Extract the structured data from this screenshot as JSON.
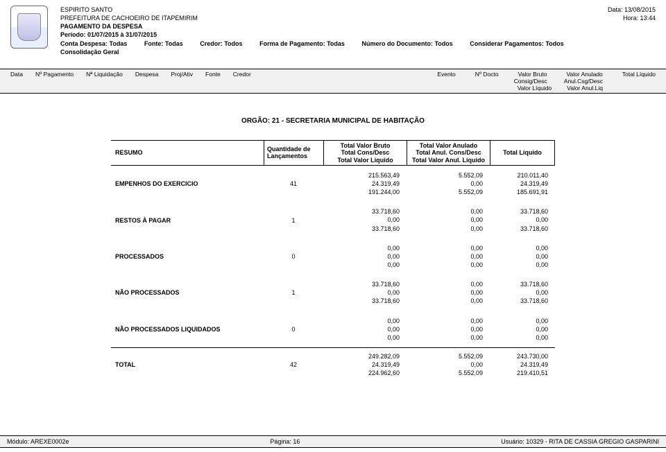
{
  "header": {
    "org_state": "ESPIRITO SANTO",
    "prefecture": "PREFEITURA DE CACHOEIRO DE ITAPEMIRIM",
    "title": "PAGAMENTO DA DESPESA",
    "period": "Período: 01/07/2015 à 31/07/2015",
    "consolidation": "Consolidação Geral",
    "date_label": "Data: 13/08/2015",
    "time_label": "Hora: 13:44",
    "filters": {
      "conta": "Conta Despesa: Todas",
      "fonte": "Fonte: Todas",
      "credor": "Credor: Todos",
      "forma": "Forma de Pagamento: Todas",
      "numdoc": "Número do Documento: Todos",
      "consid": "Considerar Pagamentos: Todos"
    }
  },
  "col_band": {
    "left": [
      "Data",
      "Nº Pagamento",
      "Nª Liquidação",
      "Despesa",
      "Proj/Ativ",
      "Fonte",
      "Credor"
    ],
    "r1": [
      "Evento",
      "Nº Docto",
      "Valor Bruto",
      "Valor Anulado",
      "Total Líquido"
    ],
    "r2": [
      "Consig/Desc",
      "Anul.Csg/Desc"
    ],
    "r3": [
      "Valor Líquido",
      "Valor Anul.Liq"
    ]
  },
  "orgao": "ORGÃO: 21 - SECRETARIA MUNICIPAL DE HABITAÇÃO",
  "summary": {
    "head": {
      "resumo": "RESUMO",
      "qtd1": "Quantidade de",
      "qtd2": "Lançamentos",
      "c1a": "Total Valor Bruto",
      "c1b": "Total Cons/Desc",
      "c1c": "Total Valor Líquido",
      "c2a": "Total Valor Anulado",
      "c2b": "Total Anul. Cons/Desc",
      "c2c": "Total Valor Anul. Líquido",
      "c3": "Total Líquido"
    },
    "rows": [
      {
        "label": "EMPENHOS DO EXERCICIO",
        "qtd": "41",
        "v1": [
          "215.563,49",
          "24.319,49",
          "191.244,00"
        ],
        "v2": [
          "5.552,09",
          "0,00",
          "5.552,09"
        ],
        "v3": [
          "210.011,40",
          "24.319,49",
          "185.691,91"
        ]
      },
      {
        "label": "RESTOS À PAGAR",
        "qtd": "1",
        "v1": [
          "33.718,60",
          "0,00",
          "33.718,60"
        ],
        "v2": [
          "0,00",
          "0,00",
          "0,00"
        ],
        "v3": [
          "33.718,60",
          "0,00",
          "33.718,60"
        ]
      },
      {
        "label": "PROCESSADOS",
        "qtd": "0",
        "v1": [
          "0,00",
          "0,00",
          "0,00"
        ],
        "v2": [
          "0,00",
          "0,00",
          "0,00"
        ],
        "v3": [
          "0,00",
          "0,00",
          "0,00"
        ]
      },
      {
        "label": "NÃO PROCESSADOS",
        "qtd": "1",
        "v1": [
          "33.718,60",
          "0,00",
          "33.718,60"
        ],
        "v2": [
          "0,00",
          "0,00",
          "0,00"
        ],
        "v3": [
          "33.718,60",
          "0,00",
          "33.718,60"
        ]
      },
      {
        "label": "NÃO PROCESSADOS LIQUIDADOS",
        "qtd": "0",
        "v1": [
          "0,00",
          "0,00",
          "0,00"
        ],
        "v2": [
          "0,00",
          "0,00",
          "0,00"
        ],
        "v3": [
          "0,00",
          "0,00",
          "0,00"
        ]
      }
    ],
    "total": {
      "label": "TOTAL",
      "qtd": "42",
      "v1": [
        "249.282,09",
        "24.319,49",
        "224.962,60"
      ],
      "v2": [
        "5.552,09",
        "0,00",
        "5.552,09"
      ],
      "v3": [
        "243.730,00",
        "24.319,49",
        "219.410,51"
      ]
    }
  },
  "footer": {
    "module": "Módulo: AREXE0002e",
    "page": "Página: 16",
    "user": "Usuário: 10329 - RITA DE CASSIA GREGIO GASPARINI"
  }
}
